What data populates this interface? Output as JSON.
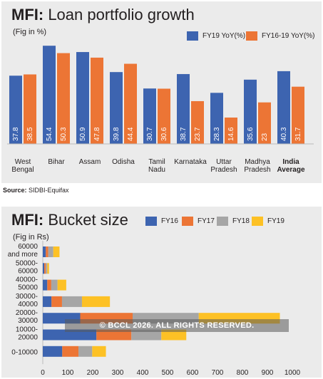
{
  "chart_data": [
    {
      "type": "bar",
      "title_bold": "MFI:",
      "title_rest": " Loan portfolio growth",
      "subtitle": "(Fig in %)",
      "categories": [
        [
          "West",
          "Bengal"
        ],
        [
          "Bihar"
        ],
        [
          "Assam"
        ],
        [
          "Odisha"
        ],
        [
          "Tamil",
          "Nadu"
        ],
        [
          "Karnataka"
        ],
        [
          "Uttar",
          "Pradesh"
        ],
        [
          "Madhya",
          "Pradesh"
        ],
        [
          "India",
          "Average"
        ]
      ],
      "bold_category_index": 8,
      "series": [
        {
          "name": "FY19 YoY(%)",
          "color": "#3d64b0",
          "values": [
            37.8,
            54.4,
            50.9,
            39.8,
            30.7,
            38.7,
            28.3,
            35.6,
            40.3
          ]
        },
        {
          "name": "FY16-19 YoY(%)",
          "color": "#ec7535",
          "values": [
            38.5,
            50.3,
            47.8,
            44.4,
            30.6,
            23.7,
            14.6,
            23,
            31.7
          ]
        }
      ],
      "ylim": [
        0,
        60
      ],
      "legend_position": "top-right",
      "source_label": "Source:",
      "source_text": " SIDBI-Equifax"
    },
    {
      "type": "stacked-horizontal-bar",
      "title_bold": "MFI:",
      "title_rest": " Bucket size",
      "subtitle": "(Fig in Rs)",
      "categories": [
        [
          "60000",
          "and more"
        ],
        [
          "50000-",
          "60000"
        ],
        [
          "40000-",
          "50000"
        ],
        [
          "30000-",
          "40000"
        ],
        [
          "20000-",
          "30000"
        ],
        [
          "10000-",
          "20000"
        ],
        [
          "0-10000"
        ]
      ],
      "series": [
        {
          "name": "FY16",
          "color": "#3d64b0",
          "values": [
            12,
            6,
            18,
            35,
            150,
            215,
            78
          ]
        },
        {
          "name": "FY17",
          "color": "#ec7535",
          "values": [
            10,
            6,
            16,
            42,
            210,
            140,
            65
          ]
        },
        {
          "name": "FY18",
          "color": "#a6a6a6",
          "values": [
            20,
            6,
            25,
            80,
            265,
            120,
            55
          ]
        },
        {
          "name": "FY19",
          "color": "#fdc125",
          "values": [
            25,
            7,
            35,
            112,
            325,
            100,
            55
          ]
        }
      ],
      "xlim": [
        0,
        1000
      ],
      "x_ticks": [
        "0",
        "100",
        "200",
        "300",
        "400",
        "500",
        "600",
        "700",
        "800",
        "900",
        "1000"
      ],
      "legend_position": "top"
    }
  ],
  "watermark": "© BCCL 2026. ALL RIGHTS RESERVED."
}
